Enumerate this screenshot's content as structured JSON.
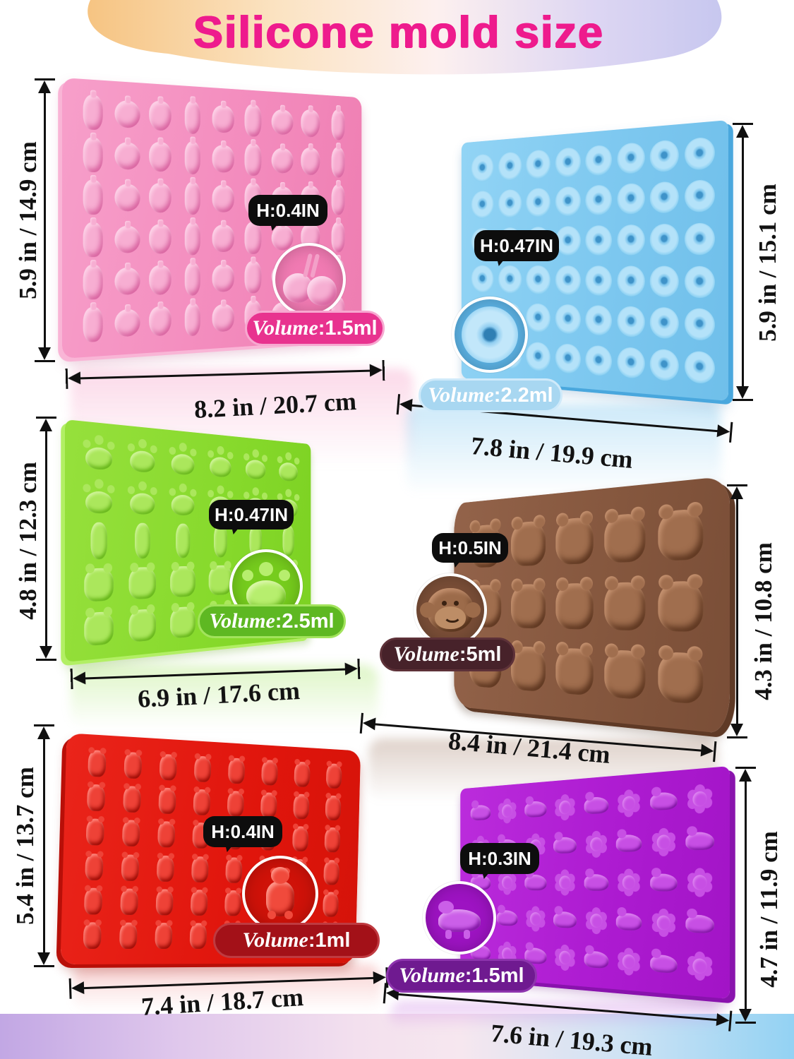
{
  "header": {
    "title": "Silicone mold size",
    "title_color": "#ee1b8d"
  },
  "molds": [
    {
      "name": "pink fruit gummy mold",
      "height_callout": "H:0.4IN",
      "volume_word": "Volume",
      "volume_value": ":1.5ml",
      "width_dim": "8.2 in / 20.7 cm",
      "side_dim": "5.9 in / 14.9 cm",
      "cavity_shape": "fruit-cavities",
      "base_color": "#f38bbd",
      "pill_color": "#e8338f"
    },
    {
      "name": "blue donut gummy mold",
      "height_callout": "H:0.47IN",
      "volume_word": "Volume",
      "volume_value": ":2.2ml",
      "width_dim": "7.8 in / 19.9 cm",
      "side_dim": "5.9 in / 15.1 cm",
      "cavity_shape": "donut-cavities",
      "base_color": "#7cc7ef",
      "pill_color": "#a8d7f1"
    },
    {
      "name": "green paw gummy mold",
      "height_callout": "H:0.47IN",
      "volume_word": "Volume",
      "volume_value": ":2.5ml",
      "width_dim": "6.9 in / 17.6 cm",
      "side_dim": "4.8 in / 12.3 cm",
      "cavity_shape": "paw-cavities",
      "base_color": "#86d92b",
      "pill_color": "#5eb822"
    },
    {
      "name": "brown animal chocolate mold",
      "height_callout": "H:0.5IN",
      "volume_word": "Volume",
      "volume_value": ":5ml",
      "width_dim": "8.4 in / 21.4 cm",
      "side_dim": "4.3 in / 10.8 cm",
      "cavity_shape": "animal-cavities",
      "base_color": "#85573e",
      "pill_color": "#47222a"
    },
    {
      "name": "red gummy bear mold",
      "height_callout": "H:0.4IN",
      "volume_word": "Volume",
      "volume_value": ":1ml",
      "width_dim": "7.4 in / 18.7 cm",
      "side_dim": "5.4 in / 13.7 cm",
      "cavity_shape": "gummy-bear-cavities",
      "base_color": "#e0150c",
      "pill_color": "#a31118"
    },
    {
      "name": "purple dinosaur gummy mold",
      "height_callout": "H:0.3IN",
      "volume_word": "Volume",
      "volume_value": ":1.5ml",
      "width_dim": "7.6 in / 19.3 cm",
      "side_dim": "4.7 in / 11.9 cm",
      "cavity_shape": "dino-flower-cavities",
      "base_color": "#ad1bd1",
      "pill_color": "#6f1a90"
    }
  ]
}
